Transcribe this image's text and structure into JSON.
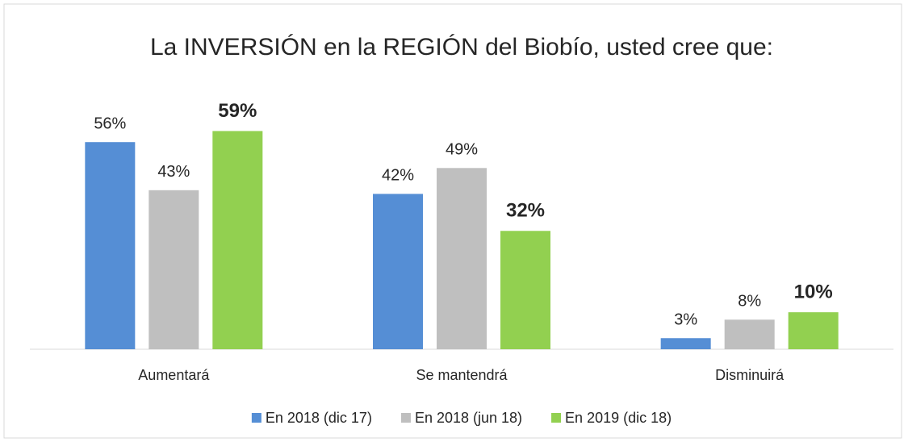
{
  "chart_data": {
    "type": "bar",
    "title": "La INVERSIÓN en la REGIÓN del Biobío, usted cree que:",
    "categories": [
      "Aumentará",
      "Se mantendrá",
      "Disminuirá"
    ],
    "series": [
      {
        "name": "En 2018 (dic 17)",
        "color": "#558ed5",
        "values": [
          56,
          42,
          3
        ],
        "value_labels": [
          "56%",
          "42%",
          "3%"
        ]
      },
      {
        "name": "En 2018 (jun 18)",
        "color": "#bfbfbf",
        "values": [
          43,
          49,
          8
        ],
        "value_labels": [
          "43%",
          "49%",
          "8%"
        ]
      },
      {
        "name": "En 2019 (dic 18)",
        "color": "#92d050",
        "values": [
          59,
          32,
          10
        ],
        "value_labels": [
          "59%",
          "32%",
          "10%"
        ],
        "bold": true
      }
    ],
    "ylim": [
      0,
      70
    ],
    "legend": "bottom"
  }
}
